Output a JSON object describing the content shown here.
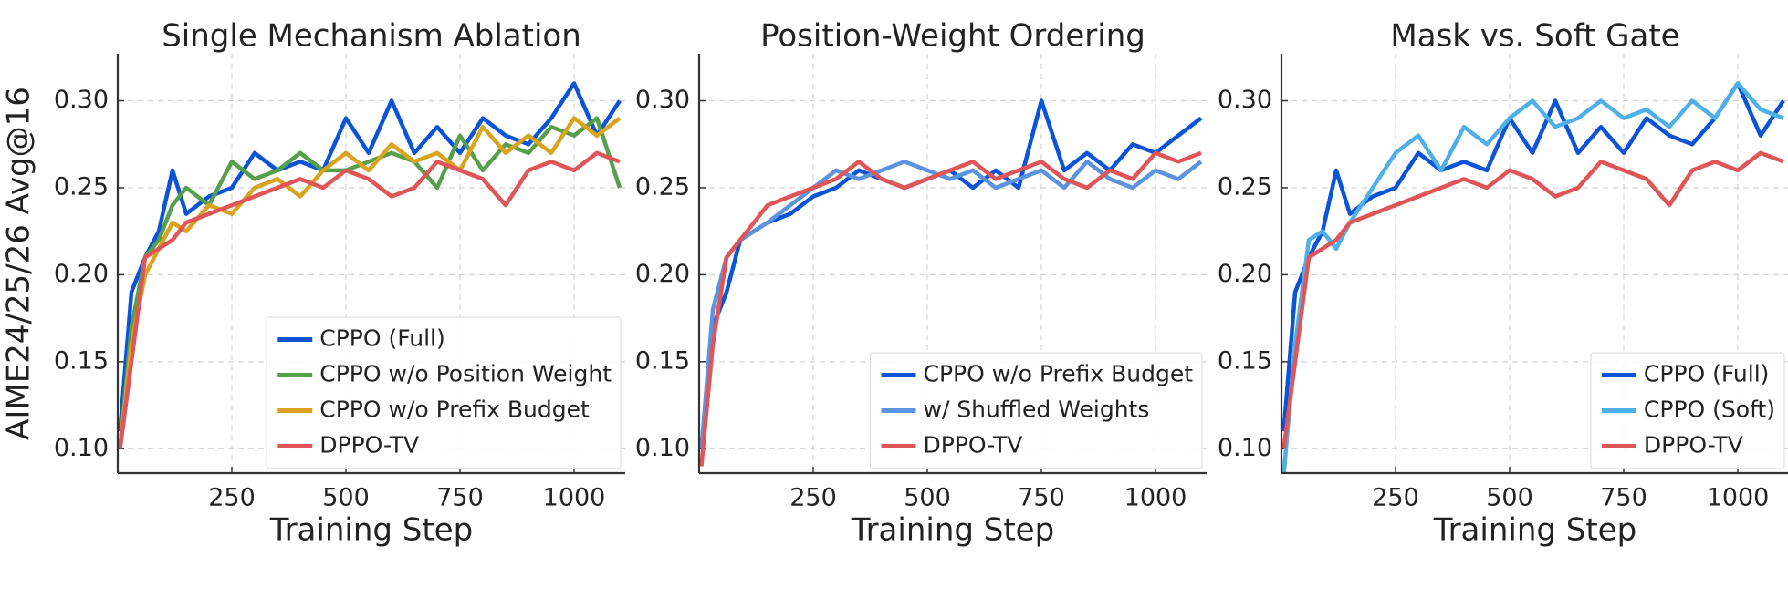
{
  "chart_data": [
    {
      "type": "line",
      "title": "Single Mechanism Ablation",
      "xlabel": "Training Step",
      "ylabel": "AIME24/25/26 Avg@16",
      "x": [
        5,
        30,
        60,
        90,
        120,
        150,
        200,
        250,
        300,
        350,
        400,
        450,
        500,
        550,
        600,
        650,
        700,
        750,
        800,
        850,
        900,
        950,
        1000,
        1050,
        1100
      ],
      "xlim": [
        0,
        1112
      ],
      "ylim": [
        0.086,
        0.327
      ],
      "xticks": [
        250,
        500,
        750,
        1000
      ],
      "yticks": [
        {
          "value": 0.1,
          "label": "0.10"
        },
        0.15,
        {
          "value": 0.2,
          "label": "0.20"
        },
        0.25,
        {
          "value": 0.3,
          "label": "0.30"
        }
      ],
      "grid": true,
      "legend": "lower right",
      "series": [
        {
          "name": "CPPO (Full)",
          "color": "#0b54d8",
          "values": [
            0.11,
            0.19,
            0.21,
            0.225,
            0.26,
            0.235,
            0.245,
            0.25,
            0.27,
            0.26,
            0.265,
            0.26,
            0.29,
            0.27,
            0.3,
            0.27,
            0.285,
            0.27,
            0.29,
            0.28,
            0.275,
            0.29,
            0.31,
            0.28,
            0.3
          ]
        },
        {
          "name": "CPPO w/o Position Weight",
          "color": "#56a04c",
          "values": [
            0.1,
            0.17,
            0.21,
            0.22,
            0.24,
            0.25,
            0.24,
            0.265,
            0.255,
            0.26,
            0.27,
            0.26,
            0.26,
            0.265,
            0.27,
            0.265,
            0.25,
            0.28,
            0.26,
            0.275,
            0.27,
            0.285,
            0.28,
            0.29,
            0.25
          ]
        },
        {
          "name": "CPPO w/o Prefix Budget",
          "color": "#d9a21f",
          "values": [
            0.1,
            0.16,
            0.2,
            0.215,
            0.23,
            0.225,
            0.24,
            0.235,
            0.25,
            0.255,
            0.245,
            0.26,
            0.27,
            0.26,
            0.275,
            0.265,
            0.27,
            0.26,
            0.285,
            0.27,
            0.28,
            0.27,
            0.29,
            0.28,
            0.29
          ]
        },
        {
          "name": "DPPO-TV",
          "color": "#e05558",
          "values": [
            0.1,
            0.15,
            0.21,
            0.215,
            0.22,
            0.23,
            0.235,
            0.24,
            0.245,
            0.25,
            0.255,
            0.25,
            0.26,
            0.255,
            0.245,
            0.25,
            0.265,
            0.26,
            0.255,
            0.24,
            0.26,
            0.265,
            0.26,
            0.27,
            0.265
          ]
        }
      ]
    },
    {
      "type": "line",
      "title": "Position-Weight Ordering",
      "xlabel": "Training Step",
      "x": [
        5,
        30,
        60,
        90,
        120,
        150,
        200,
        250,
        300,
        350,
        400,
        450,
        500,
        550,
        600,
        650,
        700,
        750,
        800,
        850,
        900,
        950,
        1000,
        1050,
        1100
      ],
      "xlim": [
        0,
        1112
      ],
      "ylim": [
        0.086,
        0.327
      ],
      "xticks": [
        250,
        500,
        750,
        1000
      ],
      "yticks": [
        {
          "value": 0.1,
          "label": "0.10"
        },
        0.15,
        {
          "value": 0.2,
          "label": "0.20"
        },
        0.25,
        {
          "value": 0.3,
          "label": "0.30"
        }
      ],
      "grid": true,
      "legend": "lower right",
      "series": [
        {
          "name": "CPPO w/o Prefix Budget",
          "color": "#0b54d8",
          "values": [
            0.1,
            0.17,
            0.19,
            0.22,
            0.225,
            0.23,
            0.235,
            0.245,
            0.25,
            0.26,
            0.255,
            0.25,
            0.255,
            0.26,
            0.25,
            0.26,
            0.25,
            0.3,
            0.26,
            0.27,
            0.26,
            0.275,
            0.27,
            0.28,
            0.29
          ]
        },
        {
          "name": "w/ Shuffled Weights",
          "color": "#5b93e0",
          "values": [
            0.1,
            0.18,
            0.21,
            0.22,
            0.225,
            0.23,
            0.24,
            0.25,
            0.26,
            0.255,
            0.26,
            0.265,
            0.26,
            0.255,
            0.26,
            0.25,
            0.255,
            0.26,
            0.25,
            0.265,
            0.255,
            0.25,
            0.26,
            0.255,
            0.265
          ]
        },
        {
          "name": "DPPO-TV",
          "color": "#e05558",
          "values": [
            0.09,
            0.16,
            0.21,
            0.22,
            0.23,
            0.24,
            0.245,
            0.25,
            0.255,
            0.265,
            0.255,
            0.25,
            0.255,
            0.26,
            0.265,
            0.255,
            0.26,
            0.265,
            0.255,
            0.25,
            0.26,
            0.255,
            0.27,
            0.265,
            0.27
          ]
        }
      ]
    },
    {
      "type": "line",
      "title": "Mask vs. Soft Gate",
      "xlabel": "Training Step",
      "x": [
        5,
        30,
        60,
        90,
        120,
        150,
        200,
        250,
        300,
        350,
        400,
        450,
        500,
        550,
        600,
        650,
        700,
        750,
        800,
        850,
        900,
        950,
        1000,
        1050,
        1100
      ],
      "xlim": [
        0,
        1112
      ],
      "ylim": [
        0.086,
        0.327
      ],
      "xticks": [
        250,
        500,
        750,
        1000
      ],
      "yticks": [
        {
          "value": 0.1,
          "label": "0.10"
        },
        0.15,
        {
          "value": 0.2,
          "label": "0.20"
        },
        0.25,
        {
          "value": 0.3,
          "label": "0.30"
        }
      ],
      "grid": true,
      "legend": "lower right",
      "series": [
        {
          "name": "CPPO (Full)",
          "color": "#0b54d8",
          "values": [
            0.11,
            0.19,
            0.21,
            0.225,
            0.26,
            0.235,
            0.245,
            0.25,
            0.27,
            0.26,
            0.265,
            0.26,
            0.29,
            0.27,
            0.3,
            0.27,
            0.285,
            0.27,
            0.29,
            0.28,
            0.275,
            0.29,
            0.31,
            0.28,
            0.3
          ]
        },
        {
          "name": "CPPO (Soft)",
          "color": "#4fb0e8",
          "values": [
            0.085,
            0.16,
            0.22,
            0.225,
            0.215,
            0.23,
            0.25,
            0.27,
            0.28,
            0.26,
            0.285,
            0.275,
            0.29,
            0.3,
            0.285,
            0.29,
            0.3,
            0.29,
            0.295,
            0.285,
            0.3,
            0.29,
            0.31,
            0.295,
            0.29
          ]
        },
        {
          "name": "DPPO-TV",
          "color": "#e05558",
          "values": [
            0.1,
            0.15,
            0.21,
            0.215,
            0.22,
            0.23,
            0.235,
            0.24,
            0.245,
            0.25,
            0.255,
            0.25,
            0.26,
            0.255,
            0.245,
            0.25,
            0.265,
            0.26,
            0.255,
            0.24,
            0.26,
            0.265,
            0.26,
            0.27,
            0.265
          ]
        }
      ]
    }
  ]
}
